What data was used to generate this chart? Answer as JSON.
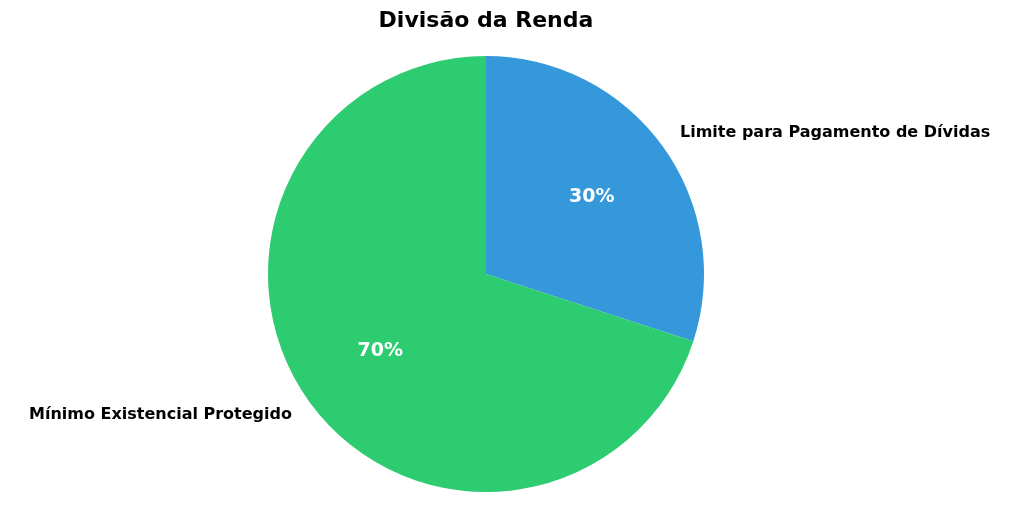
{
  "chart_data": {
    "type": "pie",
    "title": "Divisão da Renda",
    "categories": [
      "Limite para Pagamento de Dívidas",
      "Mínimo Existencial Protegido"
    ],
    "values": [
      30,
      70
    ],
    "colors": [
      "#3498db",
      "#2ecc71"
    ],
    "value_labels": [
      "30%",
      "70%"
    ],
    "legend": false
  }
}
